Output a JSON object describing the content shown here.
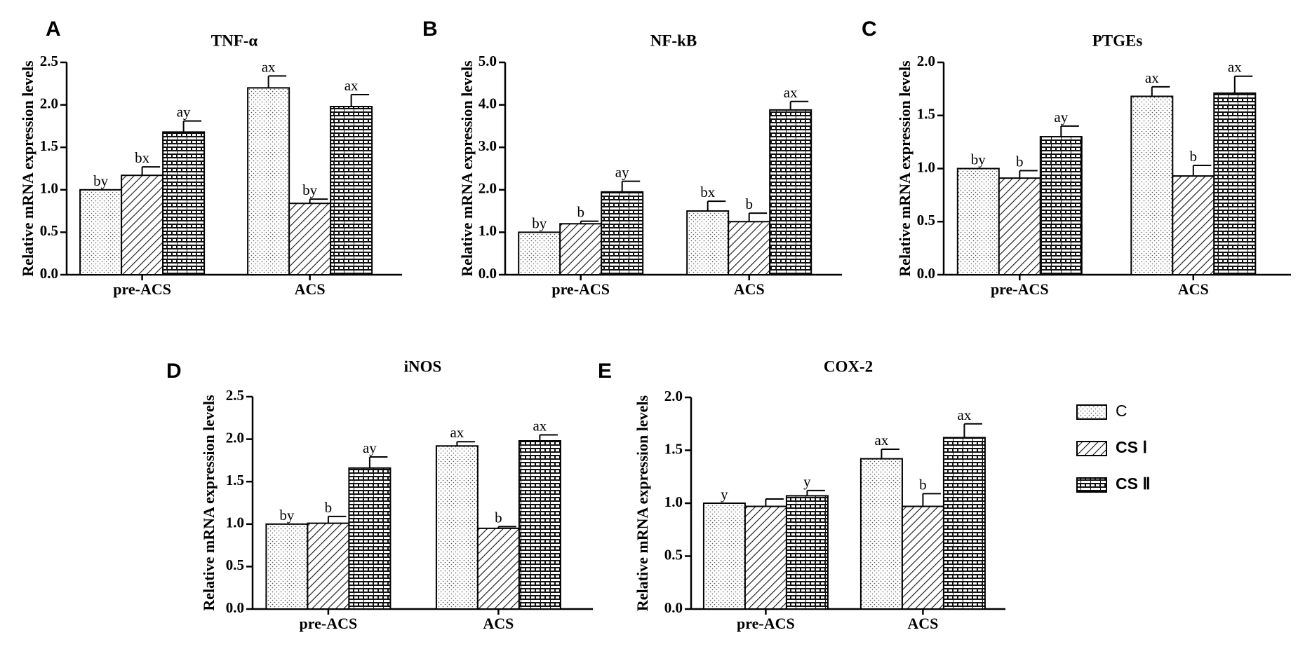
{
  "legend": {
    "items": [
      {
        "label": "C",
        "pattern": "pat-dots"
      },
      {
        "label": "CS Ⅰ",
        "pattern": "pat-hatch"
      },
      {
        "label": "CS Ⅱ",
        "pattern": "pat-brick"
      }
    ]
  },
  "chart_data": [
    {
      "panel": "A",
      "type": "bar",
      "title": "TNF-α",
      "ylabel": "Relative mRNA expression levels",
      "categories": [
        "pre-ACS",
        "ACS"
      ],
      "ylim": [
        0,
        2.5
      ],
      "yticks": [
        "0.0",
        "0.5",
        "1.0",
        "1.5",
        "2.0",
        "2.5"
      ],
      "series": [
        {
          "name": "C",
          "values": [
            1.0,
            2.2
          ],
          "errors": [
            0,
            0.14
          ],
          "labels": [
            "by",
            "ax"
          ]
        },
        {
          "name": "CS Ⅰ",
          "values": [
            1.17,
            0.84
          ],
          "errors": [
            0.1,
            0.05
          ],
          "labels": [
            "bx",
            "by"
          ]
        },
        {
          "name": "CS Ⅱ",
          "values": [
            1.68,
            1.98
          ],
          "errors": [
            0.13,
            0.14
          ],
          "labels": [
            "ay",
            "ax"
          ]
        }
      ]
    },
    {
      "panel": "B",
      "type": "bar",
      "title": "NF-kB",
      "ylabel": "Relative mRNA expression levels",
      "categories": [
        "pre-ACS",
        "ACS"
      ],
      "ylim": [
        0,
        5.0
      ],
      "yticks": [
        "0.0",
        "1.0",
        "2.0",
        "3.0",
        "4.0",
        "5.0"
      ],
      "series": [
        {
          "name": "C",
          "values": [
            1.0,
            1.5
          ],
          "errors": [
            0,
            0.23
          ],
          "labels": [
            "by",
            "bx"
          ]
        },
        {
          "name": "CS Ⅰ",
          "values": [
            1.2,
            1.25
          ],
          "errors": [
            0.06,
            0.2
          ],
          "labels": [
            "b",
            "b"
          ]
        },
        {
          "name": "CS Ⅱ",
          "values": [
            1.95,
            3.88
          ],
          "errors": [
            0.25,
            0.2
          ],
          "labels": [
            "ay",
            "ax"
          ]
        }
      ]
    },
    {
      "panel": "C",
      "type": "bar",
      "title": "PTGEs",
      "ylabel": "Relative mRNA expression levels",
      "categories": [
        "pre-ACS",
        "ACS"
      ],
      "ylim": [
        0,
        2.0
      ],
      "yticks": [
        "0.0",
        "0.5",
        "1.0",
        "1.5",
        "2.0"
      ],
      "series": [
        {
          "name": "C",
          "values": [
            1.0,
            1.68
          ],
          "errors": [
            0,
            0.09
          ],
          "labels": [
            "by",
            "ax"
          ]
        },
        {
          "name": "CS Ⅰ",
          "values": [
            0.91,
            0.93
          ],
          "errors": [
            0.07,
            0.1
          ],
          "labels": [
            "b",
            "b"
          ]
        },
        {
          "name": "CS Ⅱ",
          "values": [
            1.3,
            1.71
          ],
          "errors": [
            0.1,
            0.16
          ],
          "labels": [
            "ay",
            "ax"
          ]
        }
      ]
    },
    {
      "panel": "D",
      "type": "bar",
      "title": "iNOS",
      "ylabel": "Relative mRNA expression levels",
      "categories": [
        "pre-ACS",
        "ACS"
      ],
      "ylim": [
        0,
        2.5
      ],
      "yticks": [
        "0.0",
        "0.5",
        "1.0",
        "1.5",
        "2.0",
        "2.5"
      ],
      "series": [
        {
          "name": "C",
          "values": [
            1.0,
            1.92
          ],
          "errors": [
            0,
            0.05
          ],
          "labels": [
            "by",
            "ax"
          ]
        },
        {
          "name": "CS Ⅰ",
          "values": [
            1.01,
            0.95
          ],
          "errors": [
            0.08,
            0.02
          ],
          "labels": [
            "b",
            "b"
          ]
        },
        {
          "name": "CS Ⅱ",
          "values": [
            1.66,
            1.98
          ],
          "errors": [
            0.13,
            0.07
          ],
          "labels": [
            "ay",
            "ax"
          ]
        }
      ]
    },
    {
      "panel": "E",
      "type": "bar",
      "title": "COX-2",
      "ylabel": "Relative mRNA expression levels",
      "categories": [
        "pre-ACS",
        "ACS"
      ],
      "ylim": [
        0,
        2.0
      ],
      "yticks": [
        "0.0",
        "0.5",
        "1.0",
        "1.5",
        "2.0"
      ],
      "series": [
        {
          "name": "C",
          "values": [
            1.0,
            1.42
          ],
          "errors": [
            0,
            0.09
          ],
          "labels": [
            "y",
            "ax"
          ]
        },
        {
          "name": "CS Ⅰ",
          "values": [
            0.97,
            0.97
          ],
          "errors": [
            0.07,
            0.12
          ],
          "labels": [
            "",
            "b"
          ]
        },
        {
          "name": "CS Ⅱ",
          "values": [
            1.07,
            1.62
          ],
          "errors": [
            0.05,
            0.13
          ],
          "labels": [
            "y",
            "ax"
          ]
        }
      ]
    }
  ]
}
